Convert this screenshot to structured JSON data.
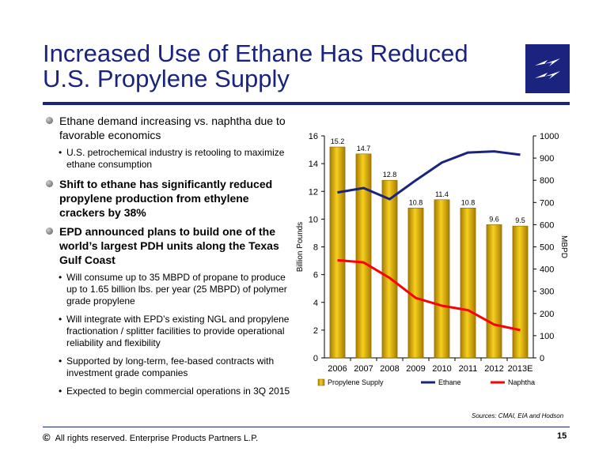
{
  "title": {
    "line1": "Increased Use of Ethane Has Reduced",
    "line2": "U.S. Propylene Supply"
  },
  "bullets": [
    {
      "text": "Ethane demand increasing vs. naphtha due to favorable economics",
      "bold": false,
      "sub": [
        "U.S. petrochemical industry is retooling to maximize ethane consumption"
      ]
    },
    {
      "text": "Shift to ethane has significantly reduced propylene production from ethylene crackers by 38%",
      "bold": true,
      "sub": []
    },
    {
      "text": "EPD announced plans to build one of the world’s largest PDH units along the Texas Gulf Coast",
      "bold": true,
      "sub": [
        "Will consume up to 35 MBPD of propane to produce up to 1.65 billion lbs. per year (25 MBPD) of polymer grade propylene",
        "Will integrate with EPD’s existing NGL and propylene fractionation / splitter facilities to provide operational reliability and flexibility",
        "Supported by long-term, fee-based contracts with investment grade companies",
        "Expected to begin commercial operations in 3Q 2015"
      ]
    }
  ],
  "sources": "Sources:  CMAI, EIA and Hodson",
  "footer": {
    "symbol": "©",
    "text": "All rights reserved. Enterprise Products Partners L.P.",
    "page": "15"
  },
  "chart_data": {
    "type": "bar",
    "categories": [
      "2006",
      "2007",
      "2008",
      "2009",
      "2010",
      "2011",
      "2012",
      "2013E"
    ],
    "series": [
      {
        "name": "Propylene Supply",
        "kind": "bar",
        "axis": "left",
        "color": "#d4a017",
        "values": [
          15.2,
          14.7,
          12.8,
          10.8,
          11.4,
          10.8,
          9.6,
          9.5
        ]
      },
      {
        "name": "Ethane",
        "kind": "line",
        "axis": "right",
        "color": "#1a237e",
        "values": [
          745,
          765,
          715,
          800,
          880,
          925,
          930,
          915
        ]
      },
      {
        "name": "Naphtha",
        "kind": "line",
        "axis": "right",
        "color": "#ff0000",
        "values": [
          440,
          430,
          360,
          270,
          235,
          215,
          150,
          125
        ]
      }
    ],
    "ylabel": "Billion Pounds",
    "y2label": "MBPD",
    "ylim": [
      0,
      16
    ],
    "yticks": [
      0,
      2,
      4,
      6,
      8,
      10,
      12,
      14,
      16
    ],
    "y2lim": [
      0,
      1000
    ],
    "y2ticks": [
      0,
      100,
      200,
      300,
      400,
      500,
      600,
      700,
      800,
      900,
      1000
    ],
    "legend": "bottom",
    "grid": false
  }
}
